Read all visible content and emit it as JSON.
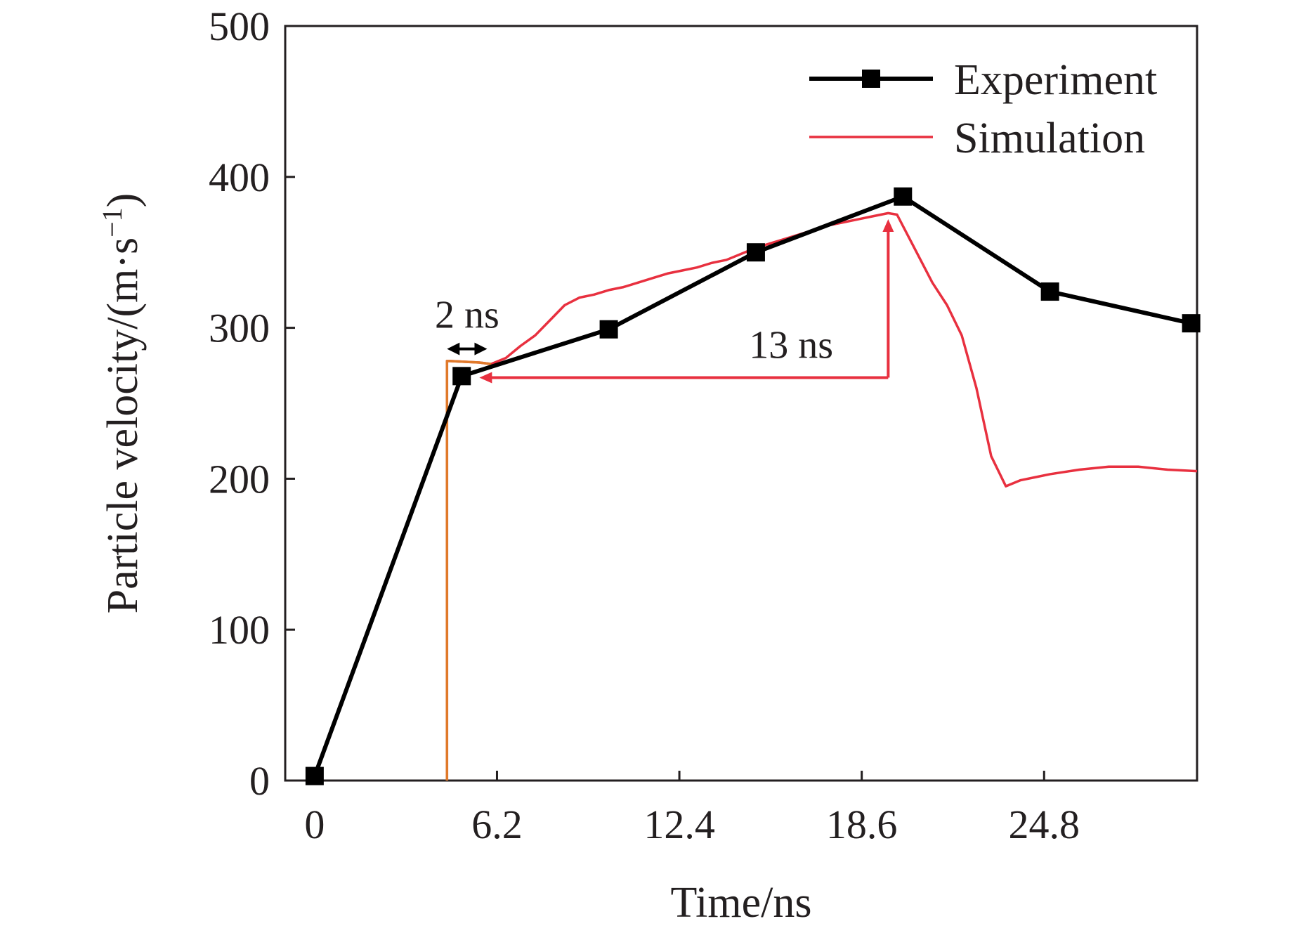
{
  "chart_data": {
    "type": "line",
    "xlabel": "Time/ns",
    "ylabel": "Particle velocity/(m·s",
    "ylabel_sup": "−1",
    "ylabel_close": ")",
    "xlim": [
      -1,
      30
    ],
    "ylim": [
      0,
      500
    ],
    "xticks": [
      0,
      6.2,
      12.4,
      18.6,
      24.8
    ],
    "xtick_labels": [
      "0",
      "6.2",
      "12.4",
      "18.6",
      "24.8"
    ],
    "yticks": [
      0,
      100,
      200,
      300,
      400,
      500
    ],
    "ytick_labels": [
      "0",
      "100",
      "200",
      "300",
      "400",
      "500"
    ],
    "grid": false,
    "legend_position": "top-right",
    "colors": {
      "experiment": "#000000",
      "simulation": "#e8303f",
      "simulation_front": "#e07a2a",
      "annotation_red": "#e8303f",
      "annotation_black": "#000000"
    },
    "series": [
      {
        "name": "Experiment",
        "marker": "square",
        "x": [
          0,
          5.0,
          10.0,
          15.0,
          20.0,
          25.0,
          29.8
        ],
        "y": [
          3,
          268,
          299,
          350,
          387,
          324,
          303
        ]
      },
      {
        "name": "Simulation",
        "marker": "none",
        "x": [
          4.5,
          4.5,
          4.6,
          5.6,
          6.0,
          6.5,
          7.0,
          7.5,
          8.0,
          8.5,
          9.0,
          9.5,
          10.0,
          10.5,
          11.0,
          11.5,
          12.0,
          12.5,
          13.0,
          13.5,
          14.0,
          14.5,
          15.0,
          15.5,
          16.0,
          16.5,
          17.0,
          17.5,
          18.0,
          18.5,
          19.0,
          19.5,
          19.8,
          20.2,
          20.6,
          21.0,
          21.5,
          22.0,
          22.5,
          23.0,
          23.5,
          24.0,
          24.5,
          25.0,
          26.0,
          27.0,
          28.0,
          29.0,
          30.0
        ],
        "y": [
          0,
          278,
          278,
          277,
          276,
          280,
          288,
          295,
          305,
          315,
          320,
          322,
          325,
          327,
          330,
          333,
          336,
          338,
          340,
          343,
          345,
          349,
          353,
          356,
          359,
          362,
          365,
          368,
          370,
          372,
          374,
          376,
          375,
          360,
          345,
          330,
          315,
          295,
          260,
          215,
          195,
          199,
          201,
          203,
          206,
          208,
          208,
          206,
          205
        ]
      }
    ],
    "annotations": [
      {
        "text": "2 ns",
        "color": "black"
      },
      {
        "text": "13 ns",
        "color": "red"
      }
    ]
  }
}
